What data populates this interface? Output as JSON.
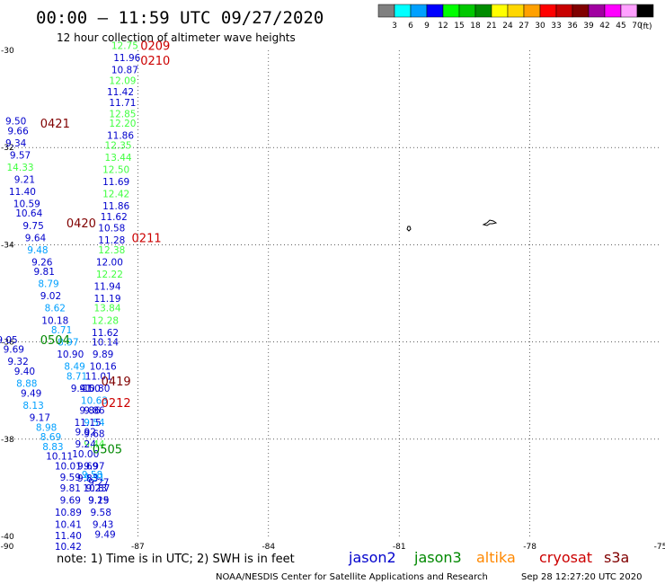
{
  "header": {
    "title": "00:00 – 11:59 UTC 09/27/2020",
    "subtitle": "12 hour collection of altimeter wave heights"
  },
  "legend": {
    "unit": "(ft)",
    "items": [
      {
        "label": "3",
        "color": "#808080"
      },
      {
        "label": "6",
        "color": "#00ffff"
      },
      {
        "label": "9",
        "color": "#00a0ff"
      },
      {
        "label": "12",
        "color": "#0000ff"
      },
      {
        "label": "15",
        "color": "#00ff00"
      },
      {
        "label": "18",
        "color": "#00c800"
      },
      {
        "label": "21",
        "color": "#008c00"
      },
      {
        "label": "24",
        "color": "#ffff00"
      },
      {
        "label": "27",
        "color": "#ffd700"
      },
      {
        "label": "30",
        "color": "#ffa000"
      },
      {
        "label": "33",
        "color": "#ff0000"
      },
      {
        "label": "36",
        "color": "#c80000"
      },
      {
        "label": "39",
        "color": "#800000"
      },
      {
        "label": "42",
        "color": "#a000a0"
      },
      {
        "label": "45",
        "color": "#ff00ff"
      },
      {
        "label": "70",
        "color": "#ffa0ff"
      },
      {
        "label": "",
        "color": "#000000"
      }
    ]
  },
  "map": {
    "lon_ticks": [
      "-90",
      "-87",
      "-84",
      "-81",
      "-78",
      "-75"
    ],
    "lat_ticks": [
      "-30",
      "-32",
      "-34",
      "-36",
      "-38",
      "-40"
    ]
  },
  "colors": {
    "jason2": "#0000cc",
    "jason3": "#008800",
    "altika": "#ff8800",
    "cryosat": "#cc0000",
    "s3a": "#800000",
    "sky": "#00a0ff",
    "lgreen": "#40ff40",
    "grid": "#000000"
  },
  "time_labels": [
    {
      "text": "0209",
      "lon": -86.6,
      "lat": -29.9,
      "c": "cryosat"
    },
    {
      "text": "0210",
      "lon": -86.6,
      "lat": -30.2,
      "c": "cryosat"
    },
    {
      "text": "0421",
      "lon": -88.9,
      "lat": -31.5,
      "c": "s3a"
    },
    {
      "text": "0420",
      "lon": -88.3,
      "lat": -33.55,
      "c": "s3a"
    },
    {
      "text": "0211",
      "lon": -86.8,
      "lat": -33.85,
      "c": "cryosat"
    },
    {
      "text": "0504",
      "lon": -88.9,
      "lat": -35.95,
      "c": "jason3"
    },
    {
      "text": "0419",
      "lon": -87.5,
      "lat": -36.8,
      "c": "s3a"
    },
    {
      "text": "0212",
      "lon": -87.5,
      "lat": -37.25,
      "c": "cryosat"
    },
    {
      "text": "0505",
      "lon": -87.7,
      "lat": -38.2,
      "c": "jason3"
    }
  ],
  "swh": [
    {
      "v": "12.75",
      "lon": -87.3,
      "lat": -29.9,
      "c": "lgreen"
    },
    {
      "v": "11.96",
      "lon": -87.25,
      "lat": -30.15,
      "c": "jason2"
    },
    {
      "v": "10.87",
      "lon": -87.3,
      "lat": -30.4,
      "c": "jason2"
    },
    {
      "v": "12.09",
      "lon": -87.35,
      "lat": -30.62,
      "c": "lgreen"
    },
    {
      "v": "11.42",
      "lon": -87.4,
      "lat": -30.85,
      "c": "jason2"
    },
    {
      "v": "11.71",
      "lon": -87.35,
      "lat": -31.07,
      "c": "jason2"
    },
    {
      "v": "12.85",
      "lon": -87.35,
      "lat": -31.3,
      "c": "lgreen"
    },
    {
      "v": "12.20",
      "lon": -87.35,
      "lat": -31.5,
      "c": "lgreen"
    },
    {
      "v": "11.86",
      "lon": -87.4,
      "lat": -31.75,
      "c": "jason2"
    },
    {
      "v": "12.35",
      "lon": -87.45,
      "lat": -31.95,
      "c": "lgreen"
    },
    {
      "v": "13.44",
      "lon": -87.45,
      "lat": -32.2,
      "c": "lgreen"
    },
    {
      "v": "12.50",
      "lon": -87.5,
      "lat": -32.45,
      "c": "lgreen"
    },
    {
      "v": "11.69",
      "lon": -87.5,
      "lat": -32.7,
      "c": "jason2"
    },
    {
      "v": "12.42",
      "lon": -87.5,
      "lat": -32.95,
      "c": "lgreen"
    },
    {
      "v": "11.86",
      "lon": -87.5,
      "lat": -33.2,
      "c": "jason2"
    },
    {
      "v": "11.62",
      "lon": -87.55,
      "lat": -33.42,
      "c": "jason2"
    },
    {
      "v": "10.58",
      "lon": -87.6,
      "lat": -33.65,
      "c": "jason2"
    },
    {
      "v": "11.28",
      "lon": -87.6,
      "lat": -33.9,
      "c": "jason2"
    },
    {
      "v": "12.38",
      "lon": -87.6,
      "lat": -34.1,
      "c": "lgreen"
    },
    {
      "v": "12.00",
      "lon": -87.65,
      "lat": -34.35,
      "c": "jason2"
    },
    {
      "v": "12.22",
      "lon": -87.65,
      "lat": -34.6,
      "c": "lgreen"
    },
    {
      "v": "11.94",
      "lon": -87.7,
      "lat": -34.85,
      "c": "jason2"
    },
    {
      "v": "11.19",
      "lon": -87.7,
      "lat": -35.1,
      "c": "jason2"
    },
    {
      "v": "13.84",
      "lon": -87.7,
      "lat": -35.3,
      "c": "lgreen"
    },
    {
      "v": "12.28",
      "lon": -87.75,
      "lat": -35.55,
      "c": "lgreen"
    },
    {
      "v": "11.62",
      "lon": -87.75,
      "lat": -35.8,
      "c": "jason2"
    },
    {
      "v": "10.14",
      "lon": -87.75,
      "lat": -36.0,
      "c": "jason2"
    },
    {
      "v": "9.89",
      "lon": -87.8,
      "lat": -36.25,
      "c": "jason2"
    },
    {
      "v": "10.16",
      "lon": -87.8,
      "lat": -36.5,
      "c": "jason2"
    },
    {
      "v": "11.01",
      "lon": -87.9,
      "lat": -36.7,
      "c": "jason2"
    },
    {
      "v": "10.80",
      "lon": -87.95,
      "lat": -36.95,
      "c": "jason2"
    },
    {
      "v": "10.63",
      "lon": -88.0,
      "lat": -37.2,
      "c": "sky"
    },
    {
      "v": "9.86",
      "lon": -88.0,
      "lat": -37.4,
      "c": "jason2"
    },
    {
      "v": "9.54",
      "lon": -88.0,
      "lat": -37.65,
      "c": "sky"
    },
    {
      "v": "9.68",
      "lon": -88.0,
      "lat": -37.88,
      "c": "jason2"
    },
    {
      "v": "9.44",
      "lon": -88.0,
      "lat": -38.1,
      "c": "lgreen"
    },
    {
      "v": "9.97",
      "lon": -88.0,
      "lat": -38.55,
      "c": "jason2"
    },
    {
      "v": "9.91",
      "lon": -88.0,
      "lat": -38.78,
      "c": "sky"
    },
    {
      "v": "9.23",
      "lon": -87.95,
      "lat": -39.0,
      "c": "jason2"
    },
    {
      "v": "9.25",
      "lon": -87.9,
      "lat": -39.25,
      "c": "jason2"
    },
    {
      "v": "9.58",
      "lon": -87.85,
      "lat": -39.5,
      "c": "jason2"
    },
    {
      "v": "9.43",
      "lon": -87.8,
      "lat": -39.75,
      "c": "jason2"
    },
    {
      "v": "9.49",
      "lon": -87.75,
      "lat": -39.95,
      "c": "jason2"
    },
    {
      "v": "9.50",
      "lon": -89.8,
      "lat": -31.45,
      "c": "jason2"
    },
    {
      "v": "9.66",
      "lon": -89.75,
      "lat": -31.65,
      "c": "jason2"
    },
    {
      "v": "9.34",
      "lon": -89.8,
      "lat": -31.9,
      "c": "jason2"
    },
    {
      "v": "9.57",
      "lon": -89.7,
      "lat": -32.15,
      "c": "jason2"
    },
    {
      "v": "14.33",
      "lon": -89.7,
      "lat": -32.4,
      "c": "lgreen"
    },
    {
      "v": "9.21",
      "lon": -89.6,
      "lat": -32.65,
      "c": "jason2"
    },
    {
      "v": "11.40",
      "lon": -89.65,
      "lat": -32.9,
      "c": "jason2"
    },
    {
      "v": "10.59",
      "lon": -89.55,
      "lat": -33.15,
      "c": "jason2"
    },
    {
      "v": "10.64",
      "lon": -89.5,
      "lat": -33.35,
      "c": "jason2"
    },
    {
      "v": "9.75",
      "lon": -89.4,
      "lat": -33.6,
      "c": "jason2"
    },
    {
      "v": "9.64",
      "lon": -89.35,
      "lat": -33.85,
      "c": "jason2"
    },
    {
      "v": "9.48",
      "lon": -89.3,
      "lat": -34.1,
      "c": "sky"
    },
    {
      "v": "9.26",
      "lon": -89.2,
      "lat": -34.35,
      "c": "jason2"
    },
    {
      "v": "9.81",
      "lon": -89.15,
      "lat": -34.55,
      "c": "jason2"
    },
    {
      "v": "8.79",
      "lon": -89.05,
      "lat": -34.8,
      "c": "sky"
    },
    {
      "v": "9.02",
      "lon": -89.0,
      "lat": -35.05,
      "c": "jason2"
    },
    {
      "v": "8.62",
      "lon": -88.9,
      "lat": -35.3,
      "c": "sky"
    },
    {
      "v": "10.18",
      "lon": -88.9,
      "lat": -35.55,
      "c": "jason2"
    },
    {
      "v": "8.71",
      "lon": -88.75,
      "lat": -35.75,
      "c": "sky"
    },
    {
      "v": "8.97",
      "lon": -88.6,
      "lat": -36.0,
      "c": "sky"
    },
    {
      "v": "10.90",
      "lon": -88.55,
      "lat": -36.25,
      "c": "jason2"
    },
    {
      "v": "8.49",
      "lon": -88.45,
      "lat": -36.5,
      "c": "sky"
    },
    {
      "v": "8.71",
      "lon": -88.4,
      "lat": -36.7,
      "c": "sky"
    },
    {
      "v": "9.41",
      "lon": -88.3,
      "lat": -36.95,
      "c": "jason2"
    },
    {
      "v": "9.50",
      "lon": -88.1,
      "lat": -36.95,
      "c": "jason2"
    },
    {
      "v": "9.86",
      "lon": -88.1,
      "lat": -37.4,
      "c": "jason2"
    },
    {
      "v": "11.15",
      "lon": -88.15,
      "lat": -37.65,
      "c": "jason2"
    },
    {
      "v": "9.92",
      "lon": -88.2,
      "lat": -37.85,
      "c": "jason2"
    },
    {
      "v": "9.24",
      "lon": -88.2,
      "lat": -38.1,
      "c": "jason2"
    },
    {
      "v": "10.00",
      "lon": -88.2,
      "lat": -38.3,
      "c": "jason2"
    },
    {
      "v": "9.69",
      "lon": -88.15,
      "lat": -38.55,
      "c": "jason2"
    },
    {
      "v": "9.58",
      "lon": -88.05,
      "lat": -38.72,
      "c": "sky"
    },
    {
      "v": "9.83",
      "lon": -88.15,
      "lat": -38.8,
      "c": "jason2"
    },
    {
      "v": "10.87",
      "lon": -87.95,
      "lat": -39.0,
      "c": "jason2"
    },
    {
      "v": "9.27",
      "lon": -87.9,
      "lat": -38.88,
      "c": "jason2"
    },
    {
      "v": "9.19",
      "lon": -87.9,
      "lat": -39.25,
      "c": "jason2"
    },
    {
      "v": "9.05",
      "lon": -90.0,
      "lat": -35.95,
      "c": "jason2"
    },
    {
      "v": "9.69",
      "lon": -89.85,
      "lat": -36.15,
      "c": "jason2"
    },
    {
      "v": "9.32",
      "lon": -89.75,
      "lat": -36.4,
      "c": "jason2"
    },
    {
      "v": "9.40",
      "lon": -89.6,
      "lat": -36.6,
      "c": "jason2"
    },
    {
      "v": "8.88",
      "lon": -89.55,
      "lat": -36.85,
      "c": "sky"
    },
    {
      "v": "9.49",
      "lon": -89.45,
      "lat": -37.05,
      "c": "jason2"
    },
    {
      "v": "8.13",
      "lon": -89.4,
      "lat": -37.3,
      "c": "sky"
    },
    {
      "v": "9.17",
      "lon": -89.25,
      "lat": -37.55,
      "c": "jason2"
    },
    {
      "v": "8.98",
      "lon": -89.1,
      "lat": -37.75,
      "c": "sky"
    },
    {
      "v": "8.69",
      "lon": -89.0,
      "lat": -37.95,
      "c": "sky"
    },
    {
      "v": "8.83",
      "lon": -88.95,
      "lat": -38.15,
      "c": "sky"
    },
    {
      "v": "10.11",
      "lon": -88.8,
      "lat": -38.35,
      "c": "jason2"
    },
    {
      "v": "10.01",
      "lon": -88.6,
      "lat": -38.55,
      "c": "jason2"
    },
    {
      "v": "9.59",
      "lon": -88.55,
      "lat": -38.78,
      "c": "jason2"
    },
    {
      "v": "9.81",
      "lon": -88.55,
      "lat": -39.0,
      "c": "jason2"
    },
    {
      "v": "9.69",
      "lon": -88.55,
      "lat": -39.25,
      "c": "jason2"
    },
    {
      "v": "10.89",
      "lon": -88.6,
      "lat": -39.5,
      "c": "jason2"
    },
    {
      "v": "10.41",
      "lon": -88.6,
      "lat": -39.75,
      "c": "jason2"
    },
    {
      "v": "11.40",
      "lon": -88.6,
      "lat": -39.98,
      "c": "jason2"
    },
    {
      "v": "10.42",
      "lon": -88.6,
      "lat": -40.2,
      "c": "jason2"
    }
  ],
  "footer": {
    "note": "note:  1) Time is in UTC;  2) SWH is in feet",
    "satellites": [
      {
        "name": "jason2",
        "c": "jason2"
      },
      {
        "name": "jason3",
        "c": "jason3"
      },
      {
        "name": "altika",
        "c": "altika"
      },
      {
        "name": "cryosat",
        "c": "cryosat"
      },
      {
        "name": "s3a",
        "c": "s3a"
      }
    ],
    "credit": "NOAA/NESDIS Center for Satellite Applications and Research",
    "timestamp": "Sep 28 12:27:20 UTC 2020"
  }
}
